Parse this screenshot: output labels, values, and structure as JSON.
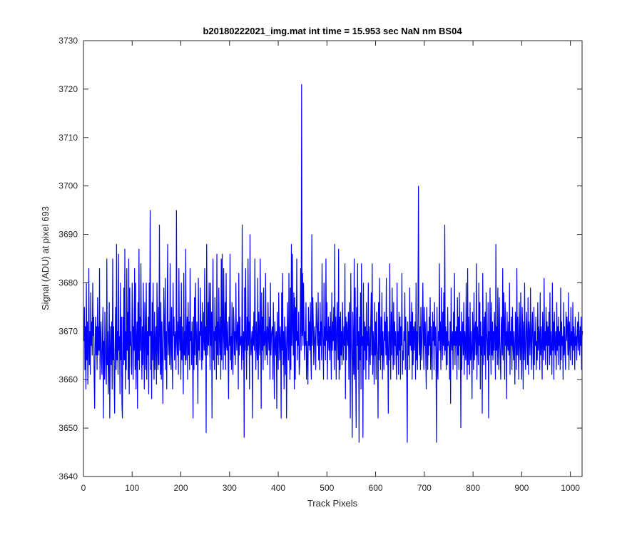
{
  "chart_data": {
    "type": "line",
    "title": "b20180222021_img.mat int time = 15.953 sec  NaN nm BS04",
    "xlabel": "Track Pixels",
    "ylabel": "Signal (ADU) at pixel 693",
    "xlim": [
      0,
      1024
    ],
    "ylim": [
      3640,
      3730
    ],
    "xticks": [
      0,
      100,
      200,
      300,
      400,
      500,
      600,
      700,
      800,
      900,
      1000
    ],
    "yticks": [
      3640,
      3650,
      3660,
      3670,
      3680,
      3690,
      3700,
      3710,
      3720,
      3730
    ],
    "grid": false,
    "line_color": "#0000ff",
    "series": [
      {
        "name": "",
        "x_start": 1,
        "x_step": 1,
        "values": [
          3668,
          3675,
          3662,
          3671,
          3658,
          3680,
          3664,
          3672,
          3659,
          3666,
          3683,
          3663,
          3670,
          3661,
          3678,
          3667,
          3672,
          3665,
          3680,
          3669,
          3673,
          3660,
          3654,
          3668,
          3673,
          3665,
          3671,
          3662,
          3677,
          3665,
          3671,
          3666,
          3683,
          3660,
          3668,
          3672,
          3664,
          3661,
          3669,
          3675,
          3652,
          3668,
          3660,
          3674,
          3667,
          3661,
          3659,
          3685,
          3663,
          3670,
          3657,
          3664,
          3676,
          3652,
          3666,
          3671,
          3663,
          3672,
          3658,
          3685,
          3664,
          3671,
          3660,
          3653,
          3667,
          3675,
          3662,
          3688,
          3664,
          3670,
          3661,
          3686,
          3666,
          3669,
          3657,
          3680,
          3664,
          3673,
          3655,
          3652,
          3673,
          3663,
          3679,
          3664,
          3687,
          3658,
          3670,
          3662,
          3683,
          3666,
          3674,
          3660,
          3685,
          3657,
          3679,
          3667,
          3670,
          3663,
          3661,
          3680,
          3674,
          3660,
          3671,
          3666,
          3683,
          3662,
          3680,
          3658,
          3668,
          3672,
          3654,
          3676,
          3664,
          3687,
          3662,
          3673,
          3666,
          3684,
          3668,
          3660,
          3671,
          3663,
          3680,
          3667,
          3658,
          3676,
          3669,
          3662,
          3680,
          3660,
          3670,
          3665,
          3673,
          3657,
          3680,
          3669,
          3695,
          3662,
          3670,
          3656,
          3676,
          3664,
          3680,
          3666,
          3660,
          3674,
          3662,
          3668,
          3671,
          3659,
          3680,
          3667,
          3662,
          3675,
          3663,
          3692,
          3669,
          3661,
          3676,
          3660,
          3672,
          3666,
          3655,
          3667,
          3679,
          3670,
          3664,
          3681,
          3662,
          3670,
          3658,
          3674,
          3688,
          3665,
          3669,
          3672,
          3663,
          3684,
          3667,
          3662,
          3675,
          3666,
          3658,
          3680,
          3669,
          3673,
          3664,
          3669,
          3670,
          3662,
          3695,
          3668,
          3665,
          3672,
          3661,
          3683,
          3669,
          3666,
          3673,
          3660,
          3680,
          3664,
          3671,
          3666,
          3657,
          3682,
          3665,
          3670,
          3663,
          3687,
          3664,
          3669,
          3673,
          3660,
          3676,
          3665,
          3672,
          3662,
          3683,
          3668,
          3670,
          3663,
          3672,
          3667,
          3652,
          3673,
          3662,
          3677,
          3665,
          3680,
          3669,
          3663,
          3672,
          3666,
          3655,
          3681,
          3666,
          3670,
          3664,
          3679,
          3669,
          3672,
          3662,
          3676,
          3664,
          3668,
          3674,
          3666,
          3683,
          3665,
          3671,
          3649,
          3688,
          3669,
          3665,
          3676,
          3667,
          3680,
          3670,
          3662,
          3680,
          3667,
          3674,
          3652,
          3673,
          3685,
          3664,
          3670,
          3662,
          3677,
          3668,
          3671,
          3660,
          3686,
          3665,
          3672,
          3663,
          3679,
          3669,
          3665,
          3673,
          3660,
          3685,
          3664,
          3686,
          3670,
          3662,
          3683,
          3669,
          3665,
          3676,
          3662,
          3682,
          3667,
          3666,
          3672,
          3665,
          3656,
          3673,
          3667,
          3686,
          3664,
          3669,
          3662,
          3676,
          3666,
          3661,
          3675,
          3672,
          3665,
          3670,
          3663,
          3680,
          3669,
          3666,
          3672,
          3671,
          3658,
          3682,
          3665,
          3673,
          3667,
          3668,
          3669,
          3662,
          3692,
          3667,
          3664,
          3670,
          3648,
          3679,
          3666,
          3683,
          3668,
          3660,
          3673,
          3666,
          3685,
          3667,
          3672,
          3658,
          3690,
          3669,
          3665,
          3668,
          3670,
          3652,
          3671,
          3667,
          3674,
          3666,
          3685,
          3669,
          3662,
          3672,
          3667,
          3664,
          3681,
          3660,
          3674,
          3668,
          3665,
          3685,
          3670,
          3654,
          3678,
          3666,
          3673,
          3662,
          3679,
          3667,
          3670,
          3664,
          3682,
          3668,
          3665,
          3671,
          3663,
          3676,
          3669,
          3666,
          3673,
          3660,
          3680,
          3665,
          3669,
          3670,
          3671,
          3660,
          3676,
          3667,
          3656,
          3672,
          3668,
          3665,
          3670,
          3654,
          3674,
          3666,
          3662,
          3678,
          3669,
          3664,
          3671,
          3668,
          3652,
          3678,
          3666,
          3682,
          3663,
          3670,
          3658,
          3673,
          3666,
          3661,
          3671,
          3652,
          3665,
          3676,
          3668,
          3664,
          3682,
          3667,
          3660,
          3679,
          3662,
          3688,
          3667,
          3686,
          3671,
          3665,
          3678,
          3658,
          3677,
          3660,
          3675,
          3668,
          3685,
          3664,
          3670,
          3667,
          3674,
          3661,
          3663,
          3670,
          3683,
          3666,
          3721,
          3669,
          3682,
          3667,
          3680,
          3671,
          3664,
          3670,
          3667,
          3676,
          3660,
          3668,
          3664,
          3659,
          3675,
          3667,
          3672,
          3666,
          3676,
          3665,
          3660,
          3690,
          3667,
          3677,
          3672,
          3663,
          3667,
          3671,
          3668,
          3662,
          3676,
          3672,
          3670,
          3667,
          3678,
          3664,
          3670,
          3662,
          3676,
          3667,
          3672,
          3664,
          3684,
          3670,
          3667,
          3660,
          3680,
          3667,
          3671,
          3664,
          3685,
          3668,
          3676,
          3660,
          3669,
          3673,
          3666,
          3671,
          3664,
          3674,
          3669,
          3660,
          3678,
          3666,
          3672,
          3668,
          3675,
          3662,
          3688,
          3666,
          3673,
          3660,
          3669,
          3676,
          3668,
          3664,
          3687,
          3660,
          3673,
          3662,
          3674,
          3665,
          3670,
          3663,
          3676,
          3668,
          3664,
          3671,
          3667,
          3684,
          3656,
          3673,
          3664,
          3672,
          3669,
          3667,
          3674,
          3660,
          3676,
          3671,
          3652,
          3682,
          3668,
          3664,
          3648,
          3674,
          3667,
          3661,
          3685,
          3660,
          3679,
          3663,
          3650,
          3675,
          3667,
          3684,
          3662,
          3670,
          3647,
          3673,
          3664,
          3678,
          3658,
          3684,
          3667,
          3669,
          3648,
          3680,
          3662,
          3672,
          3666,
          3671,
          3660,
          3676,
          3664,
          3670,
          3667,
          3680,
          3660,
          3671,
          3666,
          3663,
          3672,
          3678,
          3665,
          3684,
          3661,
          3670,
          3667,
          3659,
          3676,
          3665,
          3672,
          3660,
          3674,
          3667,
          3665,
          3652,
          3676,
          3664,
          3681,
          3668,
          3662,
          3673,
          3665,
          3678,
          3660,
          3670,
          3666,
          3662,
          3674,
          3668,
          3672,
          3665,
          3681,
          3663,
          3673,
          3666,
          3653,
          3670,
          3664,
          3684,
          3668,
          3660,
          3674,
          3665,
          3679,
          3669,
          3662,
          3676,
          3663,
          3672,
          3667,
          3670,
          3664,
          3660,
          3680,
          3665,
          3670,
          3661,
          3674,
          3666,
          3673,
          3660,
          3671,
          3667,
          3682,
          3661,
          3666,
          3664,
          3670,
          3668,
          3678,
          3662,
          3673,
          3667,
          3660,
          3647,
          3672,
          3665,
          3670,
          3662,
          3679,
          3667,
          3672,
          3666,
          3676,
          3660,
          3674,
          3663,
          3671,
          3666,
          3670,
          3672,
          3660,
          3680,
          3664,
          3670,
          3662,
          3675,
          3700,
          3668,
          3665,
          3671,
          3662,
          3675,
          3668,
          3664,
          3671,
          3680,
          3669,
          3662,
          3675,
          3667,
          3672,
          3664,
          3658,
          3675,
          3669,
          3662,
          3670,
          3665,
          3673,
          3667,
          3677,
          3662,
          3671,
          3666,
          3660,
          3674,
          3668,
          3672,
          3662,
          3676,
          3667,
          3671,
          3664,
          3647,
          3675,
          3663,
          3660,
          3670,
          3668,
          3684,
          3666,
          3672,
          3662,
          3679,
          3669,
          3664,
          3674,
          3667,
          3678,
          3665,
          3692,
          3666,
          3671,
          3662,
          3670,
          3663,
          3675,
          3667,
          3668,
          3666,
          3660,
          3672,
          3655,
          3679,
          3668,
          3666,
          3670,
          3662,
          3674,
          3667,
          3682,
          3663,
          3670,
          3667,
          3671,
          3660,
          3677,
          3665,
          3673,
          3662,
          3678,
          3667,
          3670,
          3650,
          3674,
          3662,
          3669,
          3672,
          3665,
          3676,
          3661,
          3670,
          3668,
          3664,
          3680,
          3666,
          3660,
          3683,
          3663,
          3673,
          3667,
          3661,
          3676,
          3664,
          3670,
          3666,
          3656,
          3674,
          3669,
          3662,
          3678,
          3664,
          3670,
          3672,
          3665,
          3684,
          3660,
          3671,
          3668,
          3663,
          3680,
          3667,
          3676,
          3658,
          3672,
          3665,
          3669,
          3653,
          3682,
          3669,
          3663,
          3673,
          3665,
          3674,
          3660,
          3678,
          3670,
          3667,
          3664,
          3676,
          3652,
          3670,
          3665,
          3679,
          3668,
          3661,
          3676,
          3665,
          3672,
          3664,
          3670,
          3666,
          3674,
          3669,
          3660,
          3688,
          3666,
          3671,
          3663,
          3679,
          3667,
          3662,
          3677,
          3668,
          3664,
          3660,
          3673,
          3670,
          3665,
          3683,
          3664,
          3678,
          3672,
          3660,
          3676,
          3667,
          3670,
          3656,
          3674,
          3668,
          3666,
          3672,
          3665,
          3680,
          3661,
          3670,
          3667,
          3673,
          3662,
          3675,
          3668,
          3664,
          3670,
          3666,
          3659,
          3674,
          3671,
          3662,
          3683,
          3665,
          3673,
          3667,
          3660,
          3676,
          3668,
          3664,
          3678,
          3666,
          3660,
          3675,
          3670,
          3658,
          3672,
          3664,
          3680,
          3666,
          3662,
          3670,
          3674,
          3667,
          3663,
          3677,
          3661,
          3672,
          3669,
          3665,
          3679,
          3668,
          3662,
          3671,
          3674,
          3666,
          3660,
          3675,
          3663,
          3670,
          3667,
          3673,
          3662,
          3668,
          3664,
          3676,
          3666,
          3671,
          3669,
          3662,
          3678,
          3665,
          3671,
          3667,
          3660,
          3674,
          3668,
          3664,
          3681,
          3666,
          3670,
          3663,
          3675,
          3667,
          3672,
          3662,
          3671,
          3667,
          3674,
          3663,
          3678,
          3665,
          3670,
          3666,
          3661,
          3680,
          3666,
          3672,
          3660,
          3674,
          3668,
          3665,
          3670,
          3662,
          3676,
          3666,
          3671,
          3663,
          3673,
          3667,
          3670,
          3662,
          3679,
          3664,
          3672,
          3667,
          3669,
          3660,
          3676,
          3665,
          3671,
          3666,
          3662,
          3674,
          3668,
          3673,
          3670,
          3665,
          3678,
          3662,
          3672,
          3668,
          3664,
          3675,
          3667,
          3670,
          3663,
          3676,
          3666,
          3671,
          3668,
          3662,
          3673,
          3667,
          3669,
          3664,
          3670,
          3672,
          3666,
          3674,
          3668,
          3665,
          3671,
          3667,
          3673,
          3662,
          3669,
          3670
        ]
      }
    ]
  }
}
